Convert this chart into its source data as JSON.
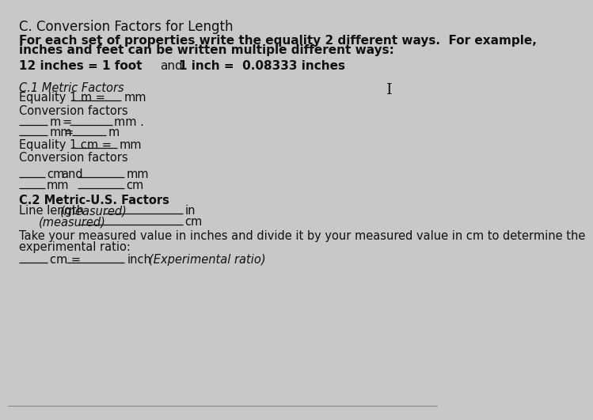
{
  "bg_color": "#c8c8c8",
  "text_color": "#111111",
  "title": "C. Conversion Factors for Length",
  "intro_line1": "For each set of properties write the equality 2 different ways.  For example,",
  "intro_line2": "inches and feet can be written multiple different ways:",
  "example_left": "12 inches = 1 foot",
  "example_mid": "and",
  "example_right": "1 inch =  0.08333 inches",
  "section1": "C.1 Metric Factors",
  "eq1_pre": "Equality 1 m = ",
  "eq1_post": "mm",
  "conv_factors": "Conversion factors",
  "cf1_col1": "m",
  "cf1_eq": "=",
  "cf1_col2": "mm .",
  "cf2_col1": "mm",
  "cf2_eq": "=",
  "cf2_col2": "m",
  "eq2_pre": "Equality 1 cm =",
  "eq2_post": "mm",
  "conv_factors2": "Conversion factors",
  "cf3_pre": "cm",
  "cf3_and": "and",
  "cf3_post": "mm",
  "cf4_pre": "mm",
  "cf4_post": "cm",
  "section2": "C.2 Metric-U.S. Factors",
  "ll_pre": "Line length ",
  "ll_measured1": "(measured)",
  "ll_unit1": "in",
  "ll_measured2": "(measured)",
  "ll_unit2": "cm",
  "take_line1": "Take your measured value in inches and divide it by your measured value in cm to determine the",
  "take_line2": "experimental ratio:",
  "ratio_pre": "cm =",
  "ratio_post": "inch",
  "ratio_label": "(Experimental ratio)"
}
